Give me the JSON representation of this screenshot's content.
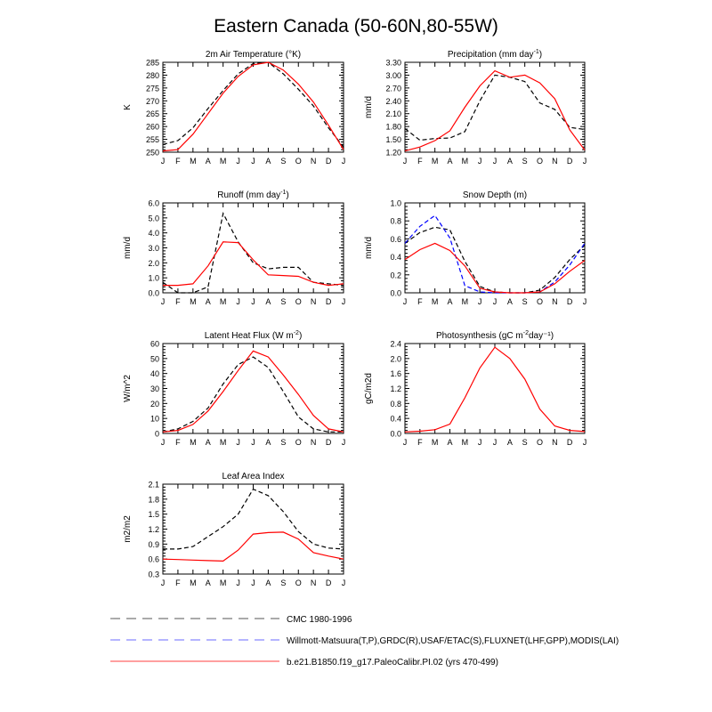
{
  "title": "Eastern Canada (50-60N,80-55W)",
  "months": [
    "J",
    "F",
    "M",
    "A",
    "M",
    "J",
    "J",
    "A",
    "S",
    "O",
    "N",
    "D",
    "J"
  ],
  "colors": {
    "obs": "#000000",
    "obs2": "#0000ff",
    "model": "#ff0000"
  },
  "legend": [
    {
      "label": "CMC 1980-1996",
      "color": "#777777",
      "dash": true
    },
    {
      "label": "Willmott-Matsuura(T,P),GRDC(R),USAF/ETAC(S),FLUXNET(LHF,GPP),MODIS(LAI)",
      "color": "#8888ff",
      "dash": true
    },
    {
      "label": "b.e21.B1850.f19_g17.PaleoCalibr.PI.02 (yrs 470-499)",
      "color": "#ff6666",
      "dash": false
    }
  ],
  "chart_data": [
    {
      "type": "line",
      "title": "2m Air Temperature (°K)",
      "ylabel": "K",
      "ylim": [
        250,
        285
      ],
      "yticks": [
        "250",
        "255",
        "260",
        "265",
        "270",
        "275",
        "280",
        "285"
      ],
      "x": [
        "J",
        "F",
        "M",
        "A",
        "M",
        "J",
        "J",
        "A",
        "S",
        "O",
        "N",
        "D",
        "J"
      ],
      "series": [
        {
          "name": "obs",
          "dashed": true,
          "color": "#000000",
          "values": [
            253.0,
            254.5,
            259.5,
            267.0,
            274.0,
            280.5,
            284.5,
            285.0,
            280.5,
            274.5,
            268.0,
            259.5,
            252.0
          ]
        },
        {
          "name": "model",
          "dashed": false,
          "color": "#ff0000",
          "values": [
            250.5,
            251.0,
            257.0,
            265.0,
            273.0,
            279.5,
            284.0,
            285.0,
            282.0,
            276.5,
            269.5,
            260.5,
            251.0
          ]
        }
      ]
    },
    {
      "type": "line",
      "title": "Precipitation (mm day⁻¹)",
      "ylabel": "mm/d",
      "ylim": [
        1.2,
        3.3
      ],
      "yticks": [
        "1.20",
        "1.50",
        "1.80",
        "2.10",
        "2.40",
        "2.70",
        "3.00",
        "3.30"
      ],
      "x": [
        "J",
        "F",
        "M",
        "A",
        "M",
        "J",
        "J",
        "A",
        "S",
        "O",
        "N",
        "D",
        "J"
      ],
      "series": [
        {
          "name": "obs",
          "dashed": true,
          "color": "#000000",
          "values": [
            1.75,
            1.48,
            1.52,
            1.53,
            1.68,
            2.4,
            3.0,
            2.95,
            2.85,
            2.35,
            2.2,
            1.78,
            1.73
          ]
        },
        {
          "name": "model",
          "dashed": false,
          "color": "#ff0000",
          "values": [
            1.23,
            1.32,
            1.47,
            1.7,
            2.25,
            2.75,
            3.1,
            2.95,
            3.0,
            2.82,
            2.45,
            1.72,
            1.25
          ]
        }
      ]
    },
    {
      "type": "line",
      "title": "Runoff (mm day⁻¹)",
      "ylabel": "mm/d",
      "ylim": [
        0,
        6
      ],
      "yticks": [
        "0.0",
        "1.0",
        "2.0",
        "3.0",
        "4.0",
        "5.0",
        "6.0"
      ],
      "x": [
        "J",
        "F",
        "M",
        "A",
        "M",
        "J",
        "J",
        "A",
        "S",
        "O",
        "N",
        "D",
        "J"
      ],
      "series": [
        {
          "name": "obs",
          "dashed": true,
          "color": "#000000",
          "values": [
            0.7,
            0.0,
            0.0,
            0.4,
            5.3,
            3.4,
            2.0,
            1.6,
            1.7,
            1.7,
            0.7,
            0.6,
            0.5
          ]
        },
        {
          "name": "model",
          "dashed": false,
          "color": "#ff0000",
          "values": [
            0.5,
            0.5,
            0.6,
            1.8,
            3.4,
            3.35,
            2.2,
            1.2,
            1.15,
            1.1,
            0.7,
            0.5,
            0.6
          ]
        }
      ]
    },
    {
      "type": "line",
      "title": "Snow Depth (m)",
      "ylabel": "mm/d",
      "ylim": [
        0,
        1
      ],
      "yticks": [
        "0.0",
        "0.2",
        "0.4",
        "0.6",
        "0.8",
        "1.0"
      ],
      "x": [
        "J",
        "F",
        "M",
        "A",
        "M",
        "J",
        "J",
        "A",
        "S",
        "O",
        "N",
        "D",
        "J"
      ],
      "series": [
        {
          "name": "obs",
          "dashed": true,
          "color": "#000000",
          "values": [
            0.55,
            0.67,
            0.73,
            0.7,
            0.35,
            0.07,
            0.01,
            0.0,
            0.0,
            0.03,
            0.17,
            0.37,
            0.53
          ]
        },
        {
          "name": "obs2",
          "dashed": true,
          "color": "#0000ff",
          "values": [
            0.55,
            0.74,
            0.86,
            0.61,
            0.08,
            0.01,
            0.0,
            0.0,
            0.0,
            0.01,
            0.12,
            0.31,
            0.55
          ]
        },
        {
          "name": "model",
          "dashed": false,
          "color": "#ff0000",
          "values": [
            0.37,
            0.48,
            0.55,
            0.47,
            0.3,
            0.05,
            0.01,
            0.0,
            0.0,
            0.01,
            0.1,
            0.24,
            0.36
          ]
        }
      ]
    },
    {
      "type": "line",
      "title": "Latent Heat Flux (W m⁻²)",
      "ylabel": "W/m^2",
      "ylim": [
        0,
        60
      ],
      "yticks": [
        "0",
        "10",
        "20",
        "30",
        "40",
        "50",
        "60"
      ],
      "x": [
        "J",
        "F",
        "M",
        "A",
        "M",
        "J",
        "J",
        "A",
        "S",
        "O",
        "N",
        "D",
        "J"
      ],
      "series": [
        {
          "name": "obs",
          "dashed": true,
          "color": "#000000",
          "values": [
            1,
            3,
            8,
            17,
            33,
            46,
            51,
            44,
            28,
            11,
            3,
            1,
            1
          ]
        },
        {
          "name": "model",
          "dashed": false,
          "color": "#ff0000",
          "values": [
            1,
            2,
            6,
            15,
            28,
            42,
            55,
            51,
            39,
            26,
            12,
            3,
            1
          ]
        }
      ]
    },
    {
      "type": "line",
      "title": "Photosynthesis (gC m⁻²day⁻¹)",
      "ylabel": "gC/m2d",
      "ylim": [
        0,
        2.4
      ],
      "yticks": [
        "0.0",
        "0.4",
        "0.8",
        "1.2",
        "1.6",
        "2.0",
        "2.4"
      ],
      "x": [
        "J",
        "F",
        "M",
        "A",
        "M",
        "J",
        "J",
        "A",
        "S",
        "O",
        "N",
        "D",
        "J"
      ],
      "series": [
        {
          "name": "model",
          "dashed": false,
          "color": "#ff0000",
          "values": [
            0.04,
            0.06,
            0.1,
            0.25,
            0.95,
            1.75,
            2.3,
            2.0,
            1.45,
            0.65,
            0.2,
            0.08,
            0.05
          ]
        }
      ]
    },
    {
      "type": "line",
      "title": "Leaf Area Index",
      "ylabel": "m2/m2",
      "ylim": [
        0.3,
        2.1
      ],
      "yticks": [
        "0.3",
        "0.6",
        "0.9",
        "1.2",
        "1.5",
        "1.8",
        "2.1"
      ],
      "x": [
        "J",
        "F",
        "M",
        "A",
        "M",
        "J",
        "J",
        "A",
        "S",
        "O",
        "N",
        "D",
        "J"
      ],
      "series": [
        {
          "name": "obs",
          "dashed": true,
          "color": "#000000",
          "values": [
            0.8,
            0.8,
            0.85,
            1.05,
            1.25,
            1.5,
            2.0,
            1.87,
            1.55,
            1.15,
            0.9,
            0.82,
            0.8
          ]
        },
        {
          "name": "model",
          "dashed": false,
          "color": "#ff0000",
          "values": [
            0.6,
            0.59,
            0.58,
            0.57,
            0.56,
            0.78,
            1.1,
            1.13,
            1.14,
            1.0,
            0.73,
            0.66,
            0.6
          ]
        }
      ]
    }
  ]
}
